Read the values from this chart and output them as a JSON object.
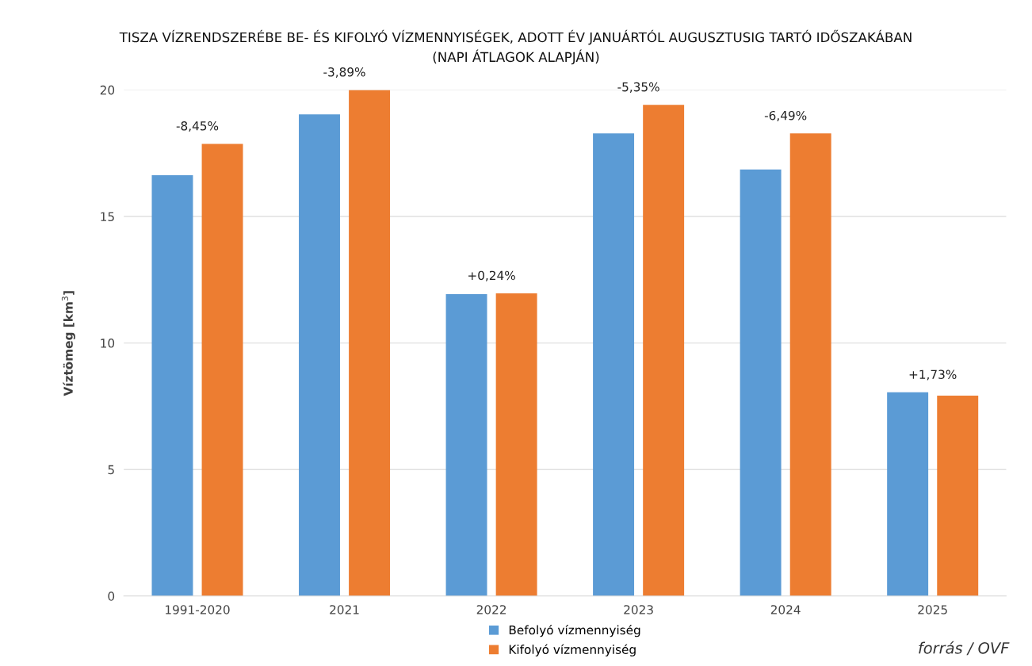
{
  "chart_data": {
    "type": "bar",
    "title": "TISZA VÍZRENDSZERÉBE BE- ÉS KIFOLYÓ VÍZMENNYISÉGEK, ADOTT ÉV JANUÁRTÓL AUGUSZTUSIG TARTÓ IDŐSZAKÁBAN\n(NAPI ÁTLAGOK ALAPJÁN)",
    "ylabel": "Víztömeg [km$^{3}$]",
    "categories": [
      "1991-2020",
      "2021",
      "2022",
      "2023",
      "2024",
      "2025"
    ],
    "series": [
      {
        "name": "Befolyó vízmennyiség",
        "color": "#5b9bd5",
        "values": [
          16.63,
          19.03,
          11.93,
          18.28,
          16.86,
          8.05
        ]
      },
      {
        "name": "Kifolyó vízmennyiség",
        "color": "#ed7d31",
        "values": [
          17.87,
          20.0,
          11.96,
          19.41,
          18.28,
          7.92
        ]
      }
    ],
    "ylim": [
      0,
      20
    ],
    "yticks": [
      0,
      5,
      10,
      15,
      20
    ],
    "grid": "y",
    "legend": "bottom",
    "annotations": [
      "-8,45%",
      "-3,89%",
      "+0,24%",
      "-5,35%",
      "-6,49%",
      "+1,73%",
      "forrás / OVF"
    ]
  }
}
